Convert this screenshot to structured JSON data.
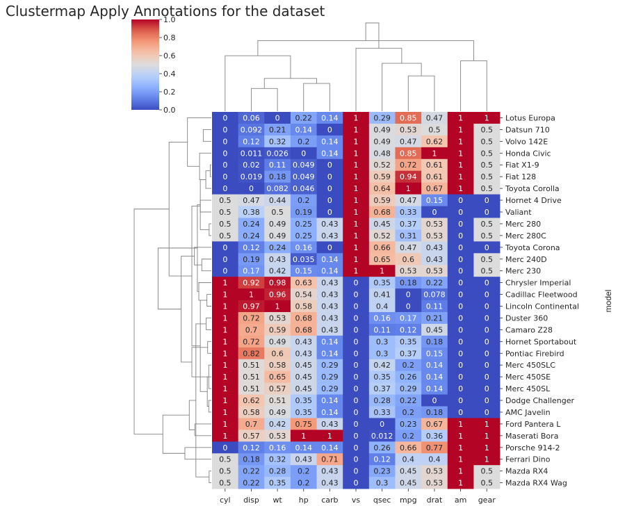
{
  "chart_data": {
    "type": "heatmap",
    "title": "Clustermap Apply Annotations for the dataset",
    "ylabel": "model",
    "columns": [
      "cyl",
      "disp",
      "wt",
      "hp",
      "carb",
      "vs",
      "qsec",
      "mpg",
      "drat",
      "am",
      "gear"
    ],
    "rows": [
      "Lotus Europa",
      "Datsun 710",
      "Volvo 142E",
      "Honda Civic",
      "Fiat X1-9",
      "Fiat 128",
      "Toyota Corolla",
      "Hornet 4 Drive",
      "Valiant",
      "Merc 280",
      "Merc 280C",
      "Toyota Corona",
      "Merc 240D",
      "Merc 230",
      "Chrysler Imperial",
      "Cadillac Fleetwood",
      "Lincoln Continental",
      "Duster 360",
      "Camaro Z28",
      "Hornet Sportabout",
      "Pontiac Firebird",
      "Merc 450SLC",
      "Merc 450SE",
      "Merc 450SL",
      "Dodge Challenger",
      "AMC Javelin",
      "Ford Pantera L",
      "Maserati Bora",
      "Porsche 914-2",
      "Ferrari Dino",
      "Mazda RX4",
      "Mazda RX4 Wag"
    ],
    "values": [
      [
        "0",
        "0.06",
        "0",
        "0.22",
        "0.14",
        "1",
        "0.29",
        "0.85",
        "0.47",
        "1",
        "1"
      ],
      [
        "0",
        "0.092",
        "0.21",
        "0.14",
        "0",
        "1",
        "0.49",
        "0.53",
        "0.5",
        "1",
        "0.5"
      ],
      [
        "0",
        "0.12",
        "0.32",
        "0.2",
        "0.14",
        "1",
        "0.49",
        "0.47",
        "0.62",
        "1",
        "0.5"
      ],
      [
        "0",
        "0.011",
        "0.026",
        "0",
        "0.14",
        "1",
        "0.48",
        "0.85",
        "1",
        "1",
        "0.5"
      ],
      [
        "0",
        "0.02",
        "0.11",
        "0.049",
        "0",
        "1",
        "0.52",
        "0.72",
        "0.61",
        "1",
        "0.5"
      ],
      [
        "0",
        "0.019",
        "0.18",
        "0.049",
        "0",
        "1",
        "0.59",
        "0.94",
        "0.61",
        "1",
        "0.5"
      ],
      [
        "0",
        "0",
        "0.082",
        "0.046",
        "0",
        "1",
        "0.64",
        "1",
        "0.67",
        "1",
        "0.5"
      ],
      [
        "0.5",
        "0.47",
        "0.44",
        "0.2",
        "0",
        "1",
        "0.59",
        "0.47",
        "0.15",
        "0",
        "0"
      ],
      [
        "0.5",
        "0.38",
        "0.5",
        "0.19",
        "0",
        "1",
        "0.68",
        "0.33",
        "0",
        "0",
        "0"
      ],
      [
        "0.5",
        "0.24",
        "0.49",
        "0.25",
        "0.43",
        "1",
        "0.45",
        "0.37",
        "0.53",
        "0",
        "0.5"
      ],
      [
        "0.5",
        "0.24",
        "0.49",
        "0.25",
        "0.43",
        "1",
        "0.52",
        "0.31",
        "0.53",
        "0",
        "0.5"
      ],
      [
        "0",
        "0.12",
        "0.24",
        "0.16",
        "0",
        "1",
        "0.66",
        "0.47",
        "0.43",
        "0",
        "0"
      ],
      [
        "0",
        "0.19",
        "0.43",
        "0.035",
        "0.14",
        "1",
        "0.65",
        "0.6",
        "0.43",
        "0",
        "0.5"
      ],
      [
        "0",
        "0.17",
        "0.42",
        "0.15",
        "0.14",
        "1",
        "1",
        "0.53",
        "0.53",
        "0",
        "0.5"
      ],
      [
        "1",
        "0.92",
        "0.98",
        "0.63",
        "0.43",
        "0",
        "0.35",
        "0.18",
        "0.22",
        "0",
        "0"
      ],
      [
        "1",
        "1",
        "0.96",
        "0.54",
        "0.43",
        "0",
        "0.41",
        "0",
        "0.078",
        "0",
        "0"
      ],
      [
        "1",
        "0.97",
        "1",
        "0.58",
        "0.43",
        "0",
        "0.4",
        "0",
        "0.11",
        "0",
        "0"
      ],
      [
        "1",
        "0.72",
        "0.53",
        "0.68",
        "0.43",
        "0",
        "0.16",
        "0.17",
        "0.21",
        "0",
        "0"
      ],
      [
        "1",
        "0.7",
        "0.59",
        "0.68",
        "0.43",
        "0",
        "0.11",
        "0.12",
        "0.45",
        "0",
        "0"
      ],
      [
        "1",
        "0.72",
        "0.49",
        "0.43",
        "0.14",
        "0",
        "0.3",
        "0.35",
        "0.18",
        "0",
        "0"
      ],
      [
        "1",
        "0.82",
        "0.6",
        "0.43",
        "0.14",
        "0",
        "0.3",
        "0.37",
        "0.15",
        "0",
        "0"
      ],
      [
        "1",
        "0.51",
        "0.58",
        "0.45",
        "0.29",
        "0",
        "0.42",
        "0.2",
        "0.14",
        "0",
        "0"
      ],
      [
        "1",
        "0.51",
        "0.65",
        "0.45",
        "0.29",
        "0",
        "0.35",
        "0.26",
        "0.14",
        "0",
        "0"
      ],
      [
        "1",
        "0.51",
        "0.57",
        "0.45",
        "0.29",
        "0",
        "0.37",
        "0.29",
        "0.14",
        "0",
        "0"
      ],
      [
        "1",
        "0.62",
        "0.51",
        "0.35",
        "0.14",
        "0",
        "0.28",
        "0.22",
        "0",
        "0",
        "0"
      ],
      [
        "1",
        "0.58",
        "0.49",
        "0.35",
        "0.14",
        "0",
        "0.33",
        "0.2",
        "0.18",
        "0",
        "0"
      ],
      [
        "1",
        "0.7",
        "0.42",
        "0.75",
        "0.43",
        "0",
        "0",
        "0.23",
        "0.67",
        "1",
        "1"
      ],
      [
        "1",
        "0.57",
        "0.53",
        "1",
        "1",
        "0",
        "0.012",
        "0.2",
        "0.36",
        "1",
        "1"
      ],
      [
        "0",
        "0.12",
        "0.16",
        "0.14",
        "0.14",
        "0",
        "0.26",
        "0.66",
        "0.77",
        "1",
        "1"
      ],
      [
        "0.5",
        "0.18",
        "0.32",
        "0.43",
        "0.71",
        "0",
        "0.12",
        "0.4",
        "0.4",
        "1",
        "1"
      ],
      [
        "0.5",
        "0.22",
        "0.28",
        "0.2",
        "0.43",
        "0",
        "0.23",
        "0.45",
        "0.53",
        "1",
        "0.5"
      ],
      [
        "0.5",
        "0.22",
        "0.35",
        "0.2",
        "0.43",
        "0",
        "0.3",
        "0.45",
        "0.53",
        "1",
        "0.5"
      ]
    ],
    "colormap": "coolwarm",
    "vmin": 0,
    "vmax": 1,
    "colorbar_ticks": [
      "0.0",
      "0.2",
      "0.4",
      "0.6",
      "0.8",
      "1.0"
    ],
    "colors": {
      "low": "#3b4cc0",
      "mid": "#dddddd",
      "high": "#b40426",
      "dendrogram": "#808080",
      "text": "#262626"
    },
    "row_linkage": [
      [
        4,
        5,
        0.03
      ],
      [
        9,
        10,
        0.06
      ],
      [
        30,
        31,
        0.06
      ],
      [
        21,
        23,
        0.07
      ],
      [
        24,
        25,
        0.07
      ],
      [
        19,
        20,
        0.1
      ],
      [
        36,
        22,
        0.11
      ],
      [
        15,
        16,
        0.12
      ],
      [
        17,
        18,
        0.14
      ],
      [
        32,
        6,
        0.15
      ],
      [
        1,
        2,
        0.22
      ],
      [
        12,
        13,
        0.26
      ],
      [
        39,
        38,
        0.3
      ],
      [
        7,
        8,
        0.3
      ],
      [
        41,
        33,
        0.3
      ],
      [
        3,
        41,
        0.32
      ],
      [
        14,
        39,
        0.34
      ],
      [
        48,
        46,
        0.38
      ],
      [
        40,
        34,
        0.42
      ],
      [
        26,
        27,
        0.45
      ],
      [
        11,
        43,
        0.46
      ],
      [
        35,
        37,
        0.53
      ],
      [
        45,
        44,
        0.53
      ],
      [
        50,
        51,
        0.6
      ],
      [
        0,
        47,
        0.65
      ],
      [
        28,
        29,
        0.72
      ],
      [
        53,
        52,
        0.82
      ],
      [
        54,
        56,
        1.15
      ],
      [
        57,
        55,
        1.32
      ],
      [
        58,
        49,
        1.45
      ],
      [
        60,
        59,
        2.1
      ]
    ],
    "col_linkage": [
      [
        1,
        2,
        0.9
      ],
      [
        3,
        4,
        1.1
      ],
      [
        11,
        12,
        1.3
      ],
      [
        7,
        8,
        1.4
      ],
      [
        6,
        14,
        1.9
      ],
      [
        0,
        13,
        2.2
      ],
      [
        9,
        10,
        2.0
      ],
      [
        5,
        15,
        2.5
      ],
      [
        16,
        17,
        2.8
      ],
      [
        18,
        19,
        3.5
      ]
    ]
  }
}
